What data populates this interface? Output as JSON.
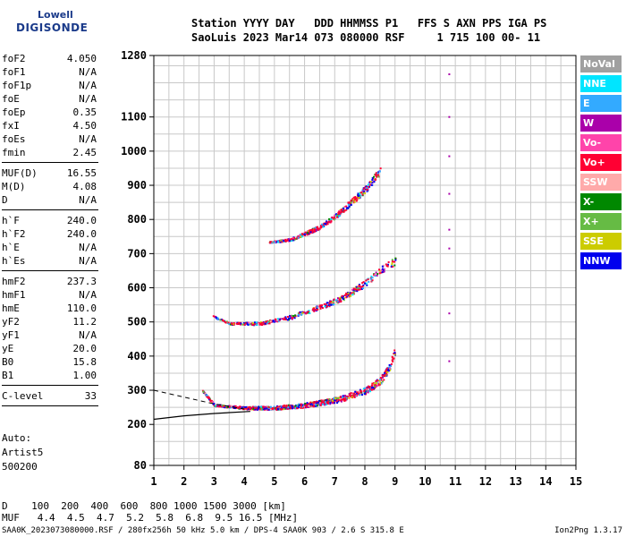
{
  "logo": {
    "top": "Lowell",
    "bottom": "DIGISONDE"
  },
  "header": {
    "line1": "Station YYYY DAY   DDD HHMMSS P1   FFS S AXN PPS IGA PS",
    "line2": "SaoLuis 2023 Mar14 073 080000 RSF     1 715 100 00- 11"
  },
  "params": [
    {
      "name": "foF2",
      "value": "4.050"
    },
    {
      "name": "foF1",
      "value": "N/A"
    },
    {
      "name": "foF1p",
      "value": "N/A"
    },
    {
      "name": "foE",
      "value": "N/A"
    },
    {
      "name": "foEp",
      "value": "0.35"
    },
    {
      "name": "fxI",
      "value": "4.50"
    },
    {
      "name": "foEs",
      "value": "N/A"
    },
    {
      "name": "fmin",
      "value": "2.45"
    },
    {
      "sep": true
    },
    {
      "name": "MUF(D)",
      "value": "16.55"
    },
    {
      "name": "M(D)",
      "value": "4.08"
    },
    {
      "name": "D",
      "value": "N/A"
    },
    {
      "sep": true
    },
    {
      "name": "h`F",
      "value": "240.0"
    },
    {
      "name": "h`F2",
      "value": "240.0"
    },
    {
      "name": "h`E",
      "value": "N/A"
    },
    {
      "name": "h`Es",
      "value": "N/A"
    },
    {
      "sep": true
    },
    {
      "name": "hmF2",
      "value": "237.3"
    },
    {
      "name": "hmF1",
      "value": "N/A"
    },
    {
      "name": "hmE",
      "value": "110.0"
    },
    {
      "name": "yF2",
      "value": "11.2"
    },
    {
      "name": "yF1",
      "value": "N/A"
    },
    {
      "name": "yE",
      "value": "20.0"
    },
    {
      "name": "B0",
      "value": "15.8"
    },
    {
      "name": "B1",
      "value": "1.00"
    },
    {
      "sep": true
    },
    {
      "name": "C-level",
      "value": "33"
    },
    {
      "sep": true
    }
  ],
  "auto": [
    "Auto:",
    "Artist5",
    "500200"
  ],
  "muf_table": {
    "line1": "D    100  200  400  600  800 1000 1500 3000 [km]",
    "line2": "MUF   4.4  4.5  4.7  5.2  5.8  6.8  9.5 16.5 [MHz]"
  },
  "footer": "SAA0K_2023073080000.RSF / 280fx256h 50 kHz 5.0 km / DPS-4 SAA0K 903 / 2.6 S 315.8 E",
  "version": "Ion2Png 1.3.17",
  "legend": [
    {
      "label": "NoVal",
      "color": "#a0a0a0"
    },
    {
      "label": "NNE",
      "color": "#00e5ff"
    },
    {
      "label": "E",
      "color": "#33aaff"
    },
    {
      "label": "W",
      "color": "#aa00aa"
    },
    {
      "label": "Vo-",
      "color": "#ff44aa"
    },
    {
      "label": "Vo+",
      "color": "#ff0033"
    },
    {
      "label": "SSW",
      "color": "#ffaaaa"
    },
    {
      "label": "X-",
      "color": "#008800"
    },
    {
      "label": "X+",
      "color": "#66bb44"
    },
    {
      "label": "SSE",
      "color": "#cccc00"
    },
    {
      "label": "NNW",
      "color": "#0000ee"
    }
  ],
  "chart_data": {
    "type": "scatter",
    "xlim": [
      1,
      15
    ],
    "ylim": [
      80,
      1280
    ],
    "x_ticks": [
      1,
      2,
      3,
      4,
      5,
      6,
      7,
      8,
      9,
      10,
      11,
      12,
      13,
      14,
      15
    ],
    "y_ticks": [
      80,
      200,
      300,
      400,
      500,
      600,
      700,
      800,
      900,
      1000,
      1100,
      1280
    ],
    "grid": true,
    "traces": [
      {
        "name": "F2 O-trace",
        "points": [
          [
            2.6,
            300
          ],
          [
            3.0,
            258
          ],
          [
            4.0,
            250
          ],
          [
            5.0,
            250
          ],
          [
            6.0,
            258
          ],
          [
            7.0,
            272
          ],
          [
            7.5,
            285
          ],
          [
            8.0,
            300
          ],
          [
            8.5,
            330
          ],
          [
            8.8,
            370
          ],
          [
            9.0,
            420
          ]
        ]
      },
      {
        "name": "2F2",
        "points": [
          [
            2.9,
            520
          ],
          [
            3.5,
            497
          ],
          [
            4.5,
            497
          ],
          [
            5.5,
            515
          ],
          [
            6.5,
            545
          ],
          [
            7.3,
            575
          ],
          [
            8.0,
            615
          ],
          [
            8.6,
            660
          ],
          [
            9.0,
            680
          ]
        ]
      },
      {
        "name": "3F2",
        "points": [
          [
            4.8,
            735
          ],
          [
            5.5,
            742
          ],
          [
            6.0,
            760
          ],
          [
            6.5,
            780
          ],
          [
            7.0,
            810
          ],
          [
            7.5,
            850
          ],
          [
            8.0,
            890
          ],
          [
            8.5,
            945
          ]
        ]
      },
      {
        "name": "spur 10.8 MHz",
        "points": [
          [
            10.8,
            1225
          ],
          [
            10.8,
            1100
          ],
          [
            10.8,
            985
          ],
          [
            10.8,
            875
          ],
          [
            10.8,
            770
          ],
          [
            10.8,
            715
          ],
          [
            10.8,
            525
          ],
          [
            10.8,
            385
          ]
        ]
      }
    ],
    "profile_curve": [
      [
        1.0,
        215
      ],
      [
        2.0,
        225
      ],
      [
        3.0,
        232
      ],
      [
        4.0,
        237
      ],
      [
        4.2,
        238
      ]
    ],
    "extrapolated_dashed": [
      [
        1.0,
        300
      ],
      [
        2.0,
        280
      ],
      [
        3.0,
        260
      ],
      [
        4.0,
        245
      ]
    ]
  }
}
